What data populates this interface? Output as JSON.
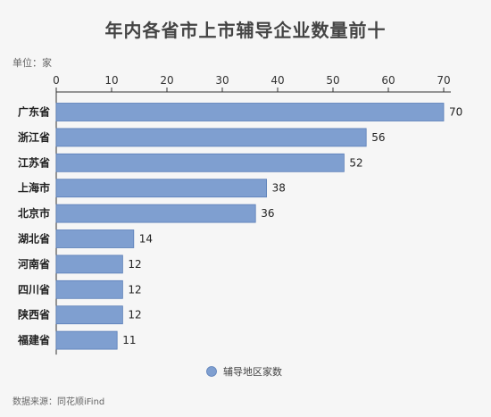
{
  "header": {
    "title": "年内各省市上市辅导企业数量前十",
    "unit": "单位：家"
  },
  "footer": {
    "source": "数据来源：同花顺iFind"
  },
  "colors": {
    "bar": "#7f9fd0",
    "bar_stroke": "#5b7fb8",
    "axis": "#333333",
    "background": "#f6f6f6"
  },
  "chart_data": {
    "type": "bar",
    "orientation": "horizontal",
    "title": "年内各省市上市辅导企业数量前十",
    "xlabel": "",
    "ylabel": "",
    "xlim": [
      0,
      70
    ],
    "xticks": [
      0,
      10,
      20,
      30,
      40,
      50,
      60,
      70
    ],
    "grid": false,
    "legend_position": "bottom",
    "categories": [
      "广东省",
      "浙江省",
      "江苏省",
      "上海市",
      "北京市",
      "湖北省",
      "河南省",
      "四川省",
      "陕西省",
      "福建省"
    ],
    "series": [
      {
        "name": "辅导地区家数",
        "values": [
          70,
          56,
          52,
          38,
          36,
          14,
          12,
          12,
          12,
          11
        ]
      }
    ]
  }
}
